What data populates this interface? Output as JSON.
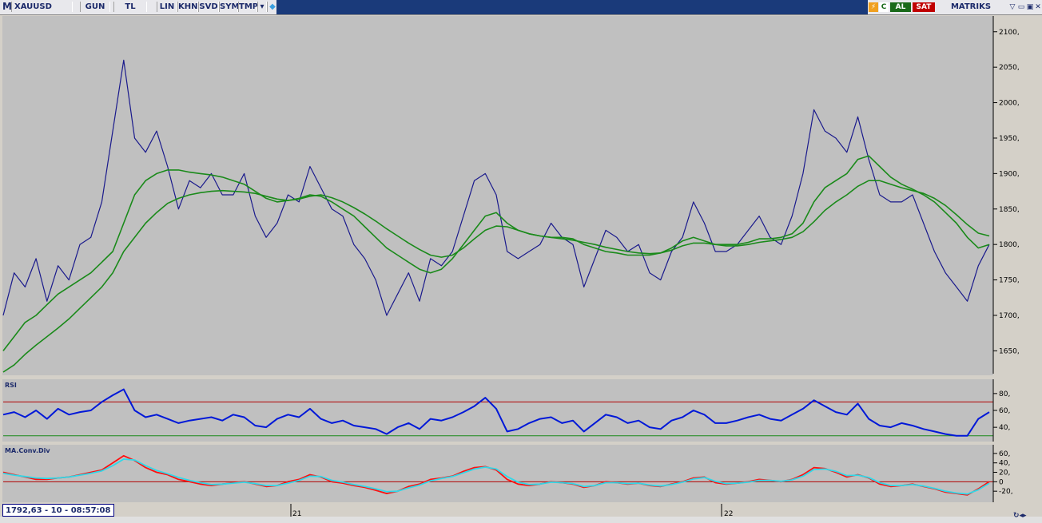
{
  "toolbar": {
    "logo": "M",
    "symbol": "XAUUSD",
    "buttons": [
      "GUN",
      "TL",
      "LIN",
      "KHN",
      "SVD",
      "SYM",
      "TMP"
    ],
    "buy_label": "AL",
    "sell_label": "SAT",
    "c_label": "C",
    "brand": "MATRIKS"
  },
  "status": {
    "readout": "1792,63 - 10 - 08:57:08"
  },
  "colors": {
    "price": "#1a1a8c",
    "ma": "#1a8a1a",
    "rsi": "#0018d8",
    "macd": "#ff1010",
    "signal": "#30d8e8",
    "ref": "#b00000",
    "ref_low": "#1a8a1a"
  },
  "chart_data": [
    {
      "type": "line",
      "title": "",
      "x_ticks": [
        "21",
        "22"
      ],
      "ylim": [
        1620,
        2120
      ],
      "y_ticks": [
        1650,
        1700,
        1750,
        1800,
        1850,
        1900,
        1950,
        2000,
        2050,
        2100
      ],
      "y_tick_labels": [
        "1650,",
        "1700,",
        "1750,",
        "1800,",
        "1850,",
        "1900,",
        "1950,",
        "2000,",
        "2050,",
        "2100,"
      ],
      "series": [
        {
          "values": [
            1700,
            1760,
            1740,
            1780,
            1720,
            1770,
            1750,
            1800,
            1810,
            1860,
            1960,
            2060,
            1950,
            1930,
            1960,
            1910,
            1850,
            1890,
            1880,
            1900,
            1870,
            1870,
            1900,
            1840,
            1810,
            1830,
            1870,
            1860,
            1910,
            1880,
            1850,
            1840,
            1800,
            1780,
            1750,
            1700,
            1730,
            1760,
            1720,
            1780,
            1770,
            1790,
            1840,
            1890,
            1900,
            1870,
            1790,
            1780,
            1790,
            1800,
            1830,
            1810,
            1800,
            1740,
            1780,
            1820,
            1810,
            1790,
            1800,
            1760,
            1750,
            1790,
            1810,
            1860,
            1830,
            1790,
            1790,
            1800,
            1820,
            1840,
            1810,
            1800,
            1840,
            1900,
            1990,
            1960,
            1950,
            1930,
            1980,
            1920,
            1870,
            1860,
            1860,
            1870,
            1830,
            1790,
            1760,
            1740,
            1720,
            1770,
            1800
          ]
        },
        {
          "values": [
            1650,
            1670,
            1690,
            1700,
            1715,
            1730,
            1740,
            1750,
            1760,
            1775,
            1790,
            1830,
            1870,
            1890,
            1900,
            1905,
            1905,
            1902,
            1900,
            1898,
            1895,
            1890,
            1885,
            1875,
            1865,
            1860,
            1862,
            1865,
            1870,
            1868,
            1860,
            1850,
            1840,
            1825,
            1810,
            1795,
            1785,
            1775,
            1765,
            1760,
            1765,
            1780,
            1800,
            1820,
            1840,
            1845,
            1830,
            1820,
            1815,
            1812,
            1810,
            1810,
            1808,
            1800,
            1795,
            1790,
            1788,
            1785,
            1785,
            1785,
            1788,
            1795,
            1805,
            1810,
            1805,
            1800,
            1800,
            1800,
            1803,
            1808,
            1808,
            1810,
            1815,
            1830,
            1860,
            1880,
            1890,
            1900,
            1920,
            1925,
            1910,
            1895,
            1885,
            1878,
            1870,
            1860,
            1845,
            1830,
            1810,
            1795,
            1800
          ]
        },
        {
          "values": [
            1620,
            1630,
            1645,
            1658,
            1670,
            1682,
            1695,
            1710,
            1725,
            1740,
            1760,
            1790,
            1810,
            1830,
            1845,
            1858,
            1865,
            1870,
            1873,
            1875,
            1876,
            1875,
            1874,
            1872,
            1868,
            1864,
            1862,
            1864,
            1868,
            1870,
            1866,
            1860,
            1852,
            1843,
            1833,
            1822,
            1812,
            1802,
            1793,
            1785,
            1782,
            1785,
            1795,
            1808,
            1820,
            1826,
            1825,
            1820,
            1815,
            1812,
            1810,
            1808,
            1806,
            1803,
            1800,
            1796,
            1793,
            1790,
            1788,
            1787,
            1788,
            1792,
            1798,
            1802,
            1802,
            1800,
            1798,
            1798,
            1800,
            1803,
            1805,
            1807,
            1810,
            1818,
            1832,
            1848,
            1860,
            1870,
            1882,
            1890,
            1890,
            1885,
            1880,
            1876,
            1872,
            1865,
            1855,
            1842,
            1828,
            1816,
            1812
          ]
        }
      ]
    },
    {
      "type": "line",
      "title": "RSI",
      "ylim": [
        25,
        95
      ],
      "y_ticks": [
        40,
        60,
        80
      ],
      "y_tick_labels": [
        "40,",
        "60,",
        "80,"
      ],
      "reference_lines": [
        70,
        30
      ],
      "series": [
        {
          "values": [
            55,
            58,
            52,
            60,
            50,
            62,
            55,
            58,
            60,
            70,
            78,
            85,
            60,
            52,
            55,
            50,
            45,
            48,
            50,
            52,
            48,
            55,
            52,
            42,
            40,
            50,
            55,
            52,
            62,
            50,
            45,
            48,
            42,
            40,
            38,
            32,
            40,
            45,
            38,
            50,
            48,
            52,
            58,
            65,
            75,
            62,
            35,
            38,
            45,
            50,
            52,
            45,
            48,
            35,
            45,
            55,
            52,
            45,
            48,
            40,
            38,
            48,
            52,
            60,
            55,
            45,
            45,
            48,
            52,
            55,
            50,
            48,
            55,
            62,
            72,
            65,
            58,
            55,
            68,
            50,
            42,
            40,
            45,
            42,
            38,
            35,
            32,
            30,
            30,
            50,
            58
          ]
        }
      ]
    },
    {
      "type": "line",
      "title": "MA.Conv.Div",
      "ylim": [
        -40,
        75
      ],
      "y_ticks": [
        -20,
        0,
        20,
        40,
        60
      ],
      "y_tick_labels": [
        "-20,",
        "0",
        "20,",
        "40,",
        "60,"
      ],
      "reference_lines": [
        0
      ],
      "series": [
        {
          "values": [
            20,
            15,
            10,
            5,
            5,
            8,
            10,
            15,
            20,
            25,
            40,
            55,
            45,
            30,
            20,
            15,
            5,
            0,
            -5,
            -8,
            -5,
            -2,
            0,
            -5,
            -10,
            -8,
            0,
            5,
            15,
            10,
            0,
            -3,
            -8,
            -12,
            -18,
            -25,
            -20,
            -10,
            -5,
            5,
            8,
            12,
            22,
            30,
            32,
            25,
            5,
            -5,
            -8,
            -5,
            0,
            -2,
            -5,
            -12,
            -8,
            0,
            -2,
            -5,
            -3,
            -8,
            -10,
            -5,
            0,
            8,
            10,
            -2,
            -5,
            -3,
            0,
            5,
            3,
            0,
            5,
            15,
            30,
            28,
            20,
            10,
            15,
            8,
            -5,
            -10,
            -8,
            -5,
            -10,
            -15,
            -22,
            -25,
            -28,
            -15,
            0
          ]
        },
        {
          "values": [
            18,
            14,
            11,
            8,
            7,
            8,
            10,
            14,
            18,
            23,
            34,
            48,
            46,
            34,
            24,
            17,
            9,
            3,
            -2,
            -6,
            -5,
            -3,
            -1,
            -4,
            -8,
            -8,
            -3,
            3,
            12,
            11,
            3,
            -1,
            -6,
            -10,
            -15,
            -21,
            -20,
            -13,
            -7,
            2,
            7,
            11,
            19,
            27,
            31,
            27,
            11,
            -1,
            -6,
            -5,
            -1,
            -2,
            -4,
            -10,
            -8,
            -2,
            -2,
            -4,
            -3,
            -7,
            -9,
            -6,
            -1,
            6,
            9,
            1,
            -4,
            -3,
            -1,
            3,
            3,
            1,
            4,
            12,
            26,
            27,
            22,
            13,
            14,
            9,
            -2,
            -8,
            -8,
            -6,
            -9,
            -14,
            -20,
            -24,
            -26,
            -17,
            -3
          ]
        }
      ]
    }
  ]
}
